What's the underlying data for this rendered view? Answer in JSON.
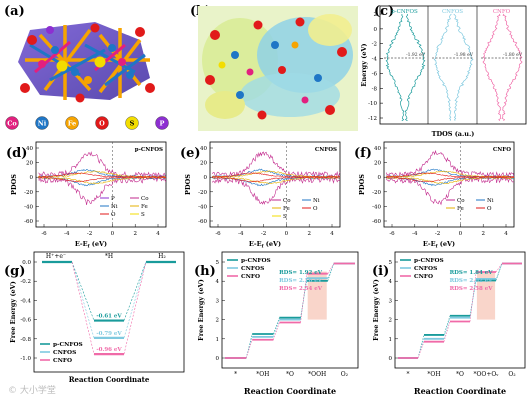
{
  "panels": {
    "a": "(a)",
    "b": "(b)",
    "c": "(c)",
    "d": "(d)",
    "e": "(e)",
    "f": "(f)",
    "g": "(g)",
    "h": "(h)",
    "i": "(i)"
  },
  "colors": {
    "co": "#e2207f",
    "ni": "#1f76c6",
    "fe": "#f6a400",
    "o": "#e11a1a",
    "s": "#f3dd00",
    "p": "#8d2fd1",
    "teal": "#199b9b",
    "light": "#7fc9df",
    "pink": "#f06aa8",
    "magenta": "#c2288c",
    "fe_pdos": "#e6b000"
  },
  "legend_a": [
    {
      "sym": "Co",
      "color": "#e2207f"
    },
    {
      "sym": "Ni",
      "color": "#1f76c6"
    },
    {
      "sym": "Fe",
      "color": "#f6a400"
    },
    {
      "sym": "O",
      "color": "#e11a1a"
    },
    {
      "sym": "S",
      "color": "#f3dd00"
    },
    {
      "sym": "P",
      "color": "#8d2fd1"
    }
  ],
  "tdos": {
    "ylabel": "Energy (eV)",
    "xlabel": "TDOS (a.u.)",
    "yticks": [
      "2",
      "0",
      "-2",
      "-4",
      "-6",
      "-8",
      "-10",
      "-12"
    ],
    "series": [
      {
        "name": "p-CNFOS",
        "center": "-1.92 eV"
      },
      {
        "name": "CNFOS",
        "center": "-1.98 eV"
      },
      {
        "name": "CNFO",
        "center": "-1.80 eV"
      }
    ]
  },
  "pdos": {
    "ylabel": "PDOS",
    "xlabel": "E-E",
    "xlabel_sub": "f",
    "xlabel_unit": " (eV)",
    "yticks": [
      "40",
      "20",
      "0",
      "-20",
      "-40",
      "-60"
    ],
    "xticks": [
      "-6",
      "-4",
      "-2",
      "0",
      "2",
      "4"
    ],
    "titles": {
      "d": "p-CNFOS",
      "e": "CNFOS",
      "f": "CNFO"
    },
    "legend_d": [
      "P",
      "Co",
      "Ni",
      "Fe",
      "O",
      "S"
    ],
    "legend_e": [
      "Co",
      "Ni",
      "Fe",
      "O",
      "S"
    ],
    "legend_f": [
      "Co",
      "Ni",
      "Fe",
      "O"
    ]
  },
  "her": {
    "ylabel": "Free Energy (eV)",
    "xlabel": "Reaction Coordinate",
    "yticks": [
      "0.0",
      "-0.2",
      "-0.4",
      "-0.6",
      "-0.8",
      "-1.0"
    ],
    "steps": [
      "H⁺+e⁻",
      "*H",
      "H₂"
    ],
    "values": [
      "-0.61 eV",
      "-0.79 eV",
      "-0.96 eV"
    ],
    "legend": [
      "p-CNFOS",
      "CNFOS",
      "CNFO"
    ]
  },
  "oer_h": {
    "ylabel": "Free Energy (eV)",
    "xlabel": "Reaction Coordinate",
    "yticks": [
      "0",
      "1",
      "2",
      "3",
      "4",
      "5"
    ],
    "steps": [
      "*",
      "*OH",
      "*O",
      "*OOH",
      "O₂"
    ],
    "rds": [
      "RDS= 1.92 eV",
      "RDS= 2.16 eV",
      "RDS= 2.54 eV"
    ],
    "legend": [
      "p-CNFOS",
      "CNFOS",
      "CNFO"
    ]
  },
  "oer_i": {
    "ylabel": "Free Energy (eV)",
    "xlabel": "Reaction Coordinate",
    "yticks": [
      "0",
      "1",
      "2",
      "3",
      "4",
      "5"
    ],
    "steps": [
      "*",
      "*OH",
      "*O",
      "*OO+Oᵥ",
      "O₂"
    ],
    "rds": [
      "RDS= 1.84 eV",
      "RDS= 2.02 eV",
      "RDS= 2.58 eV"
    ],
    "legend": [
      "p-CNFOS",
      "CNFOS",
      "CNFO"
    ]
  },
  "watermark": "© 大小学堂"
}
